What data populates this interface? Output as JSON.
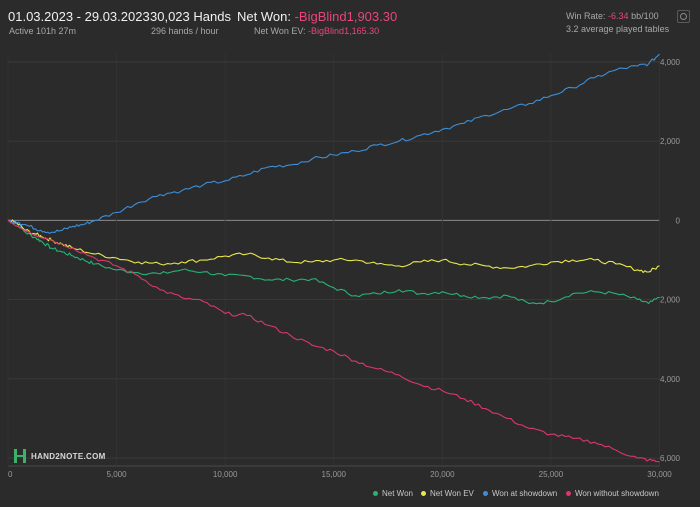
{
  "header": {
    "date_range": "01.03.2023 - 29.03.2023",
    "active_time": "Active 101h 27m",
    "hands": "30,023 Hands",
    "hands_per_hour": "296 hands / hour",
    "net_won_label": "Net Won:",
    "net_won_value": "-BigBlind1,903.30",
    "net_won_ev_label": "Net Won  EV:",
    "net_won_ev_value": "-BigBlind1,165.30",
    "win_rate_label": "Win Rate:",
    "win_rate_value": "-6.34",
    "win_rate_unit": "bb/100",
    "tables_text": "3.2 average played tables"
  },
  "logo": {
    "text": "HAND2NOTE.COM"
  },
  "chart_data": {
    "type": "line",
    "x_range": [
      0,
      30023
    ],
    "ylim": [
      -6200,
      4200
    ],
    "x_ticks": [
      0,
      5000,
      10000,
      15000,
      20000,
      25000,
      30000
    ],
    "x_tick_labels": [
      "0",
      "5,000",
      "10,000",
      "15,000",
      "20,000",
      "25,000",
      "30,000"
    ],
    "y_ticks": [
      4000,
      2000,
      0,
      -2000,
      -4000,
      -6000
    ],
    "y_tick_labels": [
      "4,000",
      "2,000",
      "0",
      "2,000",
      "4,000",
      "6,000"
    ],
    "grid": true,
    "legend_position": "bottom-right",
    "series": [
      {
        "name": "Net Won",
        "color": "#27b377",
        "x": [
          0,
          400,
          800,
          1300,
          1600,
          2000,
          2500,
          3000,
          3500,
          4000,
          5000,
          6000,
          7000,
          8000,
          9000,
          10000,
          11000,
          12000,
          13000,
          14000,
          15000,
          16000,
          17000,
          18000,
          19000,
          20000,
          21000,
          22000,
          23000,
          24000,
          25000,
          26000,
          27000,
          28000,
          29000,
          29500,
          30000
        ],
        "y": [
          0,
          -80,
          -300,
          -450,
          -550,
          -700,
          -800,
          -900,
          -1000,
          -1100,
          -1250,
          -1320,
          -1350,
          -1250,
          -1300,
          -1400,
          -1400,
          -1500,
          -1500,
          -1480,
          -1700,
          -1900,
          -1850,
          -1750,
          -1850,
          -1800,
          -1900,
          -1950,
          -1900,
          -2100,
          -2050,
          -1850,
          -1800,
          -1850,
          -2000,
          -2100,
          -1950
        ]
      },
      {
        "name": "Net Won  EV",
        "color": "#e8e84a",
        "x": [
          0,
          400,
          800,
          1300,
          1600,
          2000,
          2500,
          3000,
          4000,
          5000,
          6000,
          7000,
          8000,
          9000,
          10000,
          11000,
          12000,
          13000,
          14000,
          15000,
          16000,
          17000,
          18000,
          19000,
          20000,
          21000,
          22000,
          23000,
          24000,
          25000,
          26000,
          27000,
          28000,
          29000,
          29500,
          30000
        ],
        "y": [
          0,
          -60,
          -250,
          -350,
          -420,
          -500,
          -600,
          -700,
          -850,
          -950,
          -1050,
          -1100,
          -1050,
          -1000,
          -900,
          -850,
          -950,
          -1050,
          -1050,
          -1000,
          -1000,
          -1100,
          -1150,
          -1050,
          -1000,
          -1100,
          -1150,
          -1200,
          -1150,
          -1050,
          -1000,
          -1000,
          -1100,
          -1250,
          -1300,
          -1150
        ]
      },
      {
        "name": "Won at showdown",
        "color": "#3d8ed8",
        "x": [
          0,
          500,
          1000,
          1500,
          2000,
          2500,
          3000,
          3500,
          4000,
          5000,
          6000,
          7000,
          8000,
          9000,
          10000,
          11000,
          12000,
          13000,
          14000,
          15000,
          16000,
          17000,
          18000,
          19000,
          20000,
          21000,
          22000,
          23000,
          24000,
          25000,
          26000,
          27000,
          28000,
          29000,
          29500,
          30000
        ],
        "y": [
          0,
          -50,
          -150,
          -250,
          -300,
          -250,
          -150,
          -100,
          0,
          200,
          450,
          650,
          750,
          900,
          1000,
          1150,
          1350,
          1400,
          1550,
          1650,
          1750,
          1900,
          2000,
          2150,
          2300,
          2450,
          2650,
          2800,
          2950,
          3150,
          3350,
          3600,
          3800,
          3900,
          3950,
          4200
        ]
      },
      {
        "name": "Won without showdown",
        "color": "#d9386b",
        "x": [
          0,
          1000,
          2000,
          3000,
          4000,
          5000,
          6000,
          7000,
          8000,
          9000,
          10000,
          11000,
          12000,
          13000,
          14000,
          15000,
          16000,
          17000,
          18000,
          19000,
          20000,
          21000,
          22000,
          23000,
          24000,
          25000,
          26000,
          27000,
          28000,
          29000,
          29500,
          30000
        ],
        "y": [
          0,
          -300,
          -500,
          -700,
          -950,
          -1150,
          -1400,
          -1750,
          -1950,
          -2050,
          -2350,
          -2400,
          -2650,
          -2900,
          -3150,
          -3300,
          -3550,
          -3750,
          -3900,
          -4150,
          -4300,
          -4500,
          -4750,
          -5000,
          -5250,
          -5400,
          -5500,
          -5600,
          -5800,
          -6000,
          -6050,
          -6100
        ]
      }
    ]
  }
}
